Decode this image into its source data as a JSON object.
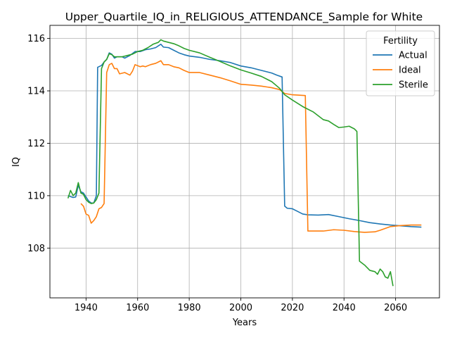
{
  "chart_data": {
    "type": "line",
    "title": "Upper_Quartile_IQ_in_RELIGIOUS_ATTENDANCE_Sample for White",
    "xlabel": "Years",
    "ylabel": "IQ",
    "xlim": [
      1926,
      2077
    ],
    "ylim": [
      106.1,
      116.5
    ],
    "xticks": [
      1940,
      1960,
      1980,
      2000,
      2020,
      2040,
      2060
    ],
    "yticks": [
      108,
      110,
      112,
      114,
      116
    ],
    "grid": true,
    "legend": {
      "title": "Fertility",
      "placement": "top-right"
    },
    "series": [
      {
        "name": "Actual",
        "color": "#1f77b4",
        "points": [
          [
            1933,
            110.0
          ],
          [
            1935,
            109.93
          ],
          [
            1936,
            109.95
          ],
          [
            1937,
            110.4
          ],
          [
            1938,
            110.15
          ],
          [
            1939,
            110.1
          ],
          [
            1940,
            109.95
          ],
          [
            1941,
            109.8
          ],
          [
            1942,
            109.72
          ],
          [
            1943,
            109.72
          ],
          [
            1944,
            110.0
          ],
          [
            1944.5,
            114.9
          ],
          [
            1946,
            114.97
          ],
          [
            1947,
            115.1
          ],
          [
            1948,
            115.2
          ],
          [
            1949,
            115.45
          ],
          [
            1950,
            115.4
          ],
          [
            1951,
            115.25
          ],
          [
            1952,
            115.3
          ],
          [
            1954,
            115.3
          ],
          [
            1955,
            115.25
          ],
          [
            1957,
            115.35
          ],
          [
            1959,
            115.5
          ],
          [
            1961,
            115.5
          ],
          [
            1963,
            115.57
          ],
          [
            1965,
            115.6
          ],
          [
            1967,
            115.65
          ],
          [
            1969,
            115.78
          ],
          [
            1970,
            115.67
          ],
          [
            1972,
            115.65
          ],
          [
            1974,
            115.55
          ],
          [
            1976,
            115.45
          ],
          [
            1978,
            115.38
          ],
          [
            1980,
            115.33
          ],
          [
            1984,
            115.28
          ],
          [
            1988,
            115.2
          ],
          [
            1992,
            115.15
          ],
          [
            1996,
            115.08
          ],
          [
            2000,
            114.95
          ],
          [
            2004,
            114.88
          ],
          [
            2008,
            114.78
          ],
          [
            2012,
            114.68
          ],
          [
            2014,
            114.6
          ],
          [
            2016,
            114.53
          ],
          [
            2017,
            109.6
          ],
          [
            2018,
            109.52
          ],
          [
            2020,
            109.5
          ],
          [
            2022,
            109.4
          ],
          [
            2024,
            109.3
          ],
          [
            2026,
            109.27
          ],
          [
            2030,
            109.26
          ],
          [
            2034,
            109.28
          ],
          [
            2038,
            109.2
          ],
          [
            2042,
            109.12
          ],
          [
            2046,
            109.05
          ],
          [
            2050,
            108.97
          ],
          [
            2054,
            108.92
          ],
          [
            2058,
            108.88
          ],
          [
            2062,
            108.85
          ],
          [
            2066,
            108.82
          ],
          [
            2070,
            108.8
          ]
        ]
      },
      {
        "name": "Ideal",
        "color": "#ff7f0e",
        "points": [
          [
            1938,
            109.7
          ],
          [
            1939,
            109.6
          ],
          [
            1940,
            109.3
          ],
          [
            1941,
            109.25
          ],
          [
            1942,
            108.95
          ],
          [
            1943,
            109.05
          ],
          [
            1944,
            109.2
          ],
          [
            1945,
            109.5
          ],
          [
            1946,
            109.55
          ],
          [
            1947,
            109.7
          ],
          [
            1948,
            114.7
          ],
          [
            1949,
            115.0
          ],
          [
            1950,
            115.05
          ],
          [
            1951,
            114.85
          ],
          [
            1952,
            114.85
          ],
          [
            1953,
            114.65
          ],
          [
            1955,
            114.7
          ],
          [
            1957,
            114.6
          ],
          [
            1958,
            114.75
          ],
          [
            1959,
            115.0
          ],
          [
            1961,
            114.92
          ],
          [
            1962,
            114.95
          ],
          [
            1963,
            114.92
          ],
          [
            1965,
            115.0
          ],
          [
            1967,
            115.05
          ],
          [
            1969,
            115.15
          ],
          [
            1970,
            115.0
          ],
          [
            1972,
            115.0
          ],
          [
            1974,
            114.92
          ],
          [
            1976,
            114.88
          ],
          [
            1978,
            114.78
          ],
          [
            1980,
            114.7
          ],
          [
            1984,
            114.7
          ],
          [
            1988,
            114.6
          ],
          [
            1992,
            114.5
          ],
          [
            1996,
            114.38
          ],
          [
            2000,
            114.25
          ],
          [
            2004,
            114.22
          ],
          [
            2008,
            114.18
          ],
          [
            2012,
            114.12
          ],
          [
            2015,
            114.05
          ],
          [
            2017,
            113.9
          ],
          [
            2020,
            113.85
          ],
          [
            2025,
            113.82
          ],
          [
            2026,
            108.65
          ],
          [
            2028,
            108.65
          ],
          [
            2032,
            108.65
          ],
          [
            2036,
            108.7
          ],
          [
            2040,
            108.68
          ],
          [
            2044,
            108.63
          ],
          [
            2048,
            108.6
          ],
          [
            2052,
            108.62
          ],
          [
            2054,
            108.68
          ],
          [
            2056,
            108.75
          ],
          [
            2058,
            108.82
          ],
          [
            2062,
            108.86
          ],
          [
            2066,
            108.88
          ],
          [
            2070,
            108.88
          ]
        ]
      },
      {
        "name": "Sterile",
        "color": "#2ca02c",
        "points": [
          [
            1933,
            109.9
          ],
          [
            1934,
            110.2
          ],
          [
            1935,
            110.0
          ],
          [
            1936,
            110.1
          ],
          [
            1937,
            110.5
          ],
          [
            1938,
            110.1
          ],
          [
            1939,
            110.05
          ],
          [
            1940,
            109.85
          ],
          [
            1941,
            109.75
          ],
          [
            1942,
            109.7
          ],
          [
            1943,
            109.72
          ],
          [
            1944,
            109.85
          ],
          [
            1945,
            110.1
          ],
          [
            1946,
            114.85
          ],
          [
            1947,
            115.1
          ],
          [
            1948,
            115.2
          ],
          [
            1949,
            115.42
          ],
          [
            1950,
            115.38
          ],
          [
            1951,
            115.3
          ],
          [
            1952,
            115.3
          ],
          [
            1954,
            115.3
          ],
          [
            1956,
            115.35
          ],
          [
            1958,
            115.4
          ],
          [
            1960,
            115.5
          ],
          [
            1962,
            115.55
          ],
          [
            1964,
            115.65
          ],
          [
            1966,
            115.78
          ],
          [
            1968,
            115.85
          ],
          [
            1969,
            115.95
          ],
          [
            1970,
            115.9
          ],
          [
            1972,
            115.85
          ],
          [
            1974,
            115.8
          ],
          [
            1976,
            115.72
          ],
          [
            1978,
            115.62
          ],
          [
            1980,
            115.55
          ],
          [
            1984,
            115.45
          ],
          [
            1988,
            115.28
          ],
          [
            1992,
            115.12
          ],
          [
            1996,
            114.95
          ],
          [
            2000,
            114.8
          ],
          [
            2004,
            114.68
          ],
          [
            2008,
            114.55
          ],
          [
            2012,
            114.35
          ],
          [
            2015,
            114.1
          ],
          [
            2017,
            113.85
          ],
          [
            2020,
            113.65
          ],
          [
            2024,
            113.4
          ],
          [
            2028,
            113.2
          ],
          [
            2030,
            113.05
          ],
          [
            2032,
            112.9
          ],
          [
            2034,
            112.85
          ],
          [
            2036,
            112.72
          ],
          [
            2038,
            112.6
          ],
          [
            2040,
            112.62
          ],
          [
            2042,
            112.65
          ],
          [
            2044,
            112.55
          ],
          [
            2045,
            112.45
          ],
          [
            2046,
            107.5
          ],
          [
            2048,
            107.35
          ],
          [
            2050,
            107.15
          ],
          [
            2052,
            107.1
          ],
          [
            2053,
            107.0
          ],
          [
            2054,
            107.2
          ],
          [
            2055,
            107.1
          ],
          [
            2056,
            106.9
          ],
          [
            2057,
            106.85
          ],
          [
            2058,
            107.1
          ],
          [
            2059,
            106.55
          ]
        ]
      }
    ]
  }
}
